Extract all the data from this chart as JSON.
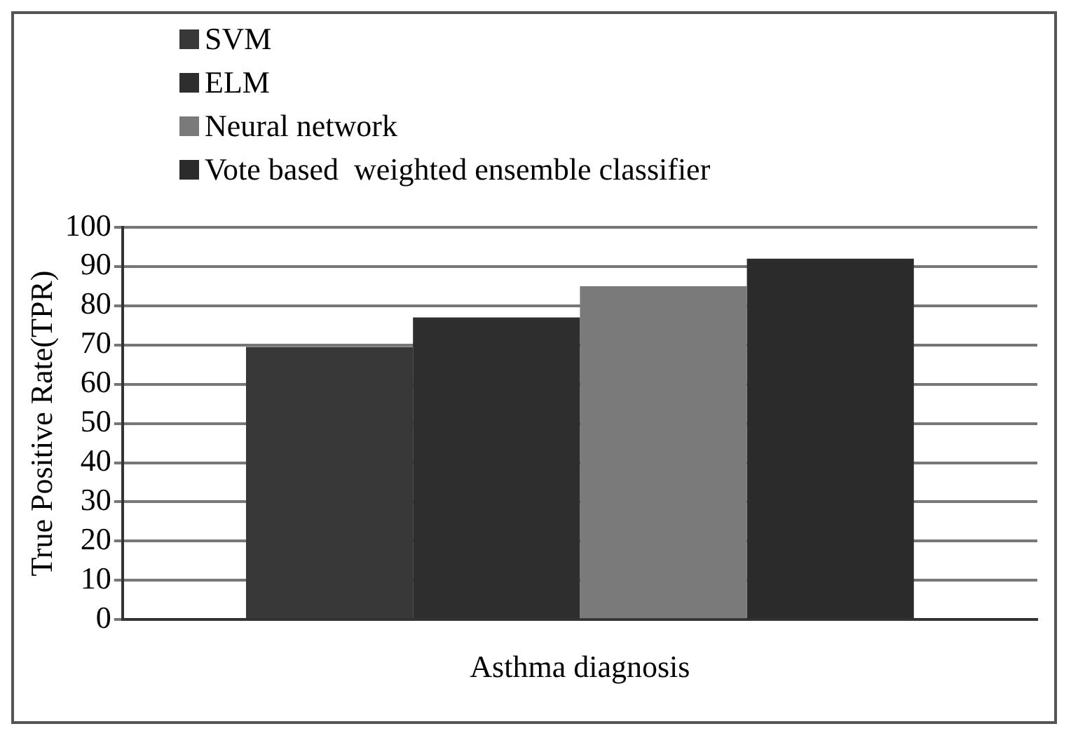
{
  "chart_data": {
    "type": "bar",
    "ylabel": "True Positive Rate(TPR)",
    "categories": [
      "Asthma diagnosis"
    ],
    "series": [
      {
        "name": "SVM",
        "color": "#383838",
        "values": [
          69.5
        ]
      },
      {
        "name": "ELM",
        "color": "#2e2e2e",
        "values": [
          77
        ]
      },
      {
        "name": "Neural network",
        "color": "#7a7a7a",
        "values": [
          85
        ]
      },
      {
        "name": "Vote based  weighted ensemble classifier",
        "color": "#2b2b2b",
        "values": [
          92
        ]
      }
    ],
    "ylim": [
      0,
      100
    ],
    "yticks": [
      0,
      10,
      20,
      30,
      40,
      50,
      60,
      70,
      80,
      90,
      100
    ],
    "grid": "y",
    "legend": "top left"
  }
}
